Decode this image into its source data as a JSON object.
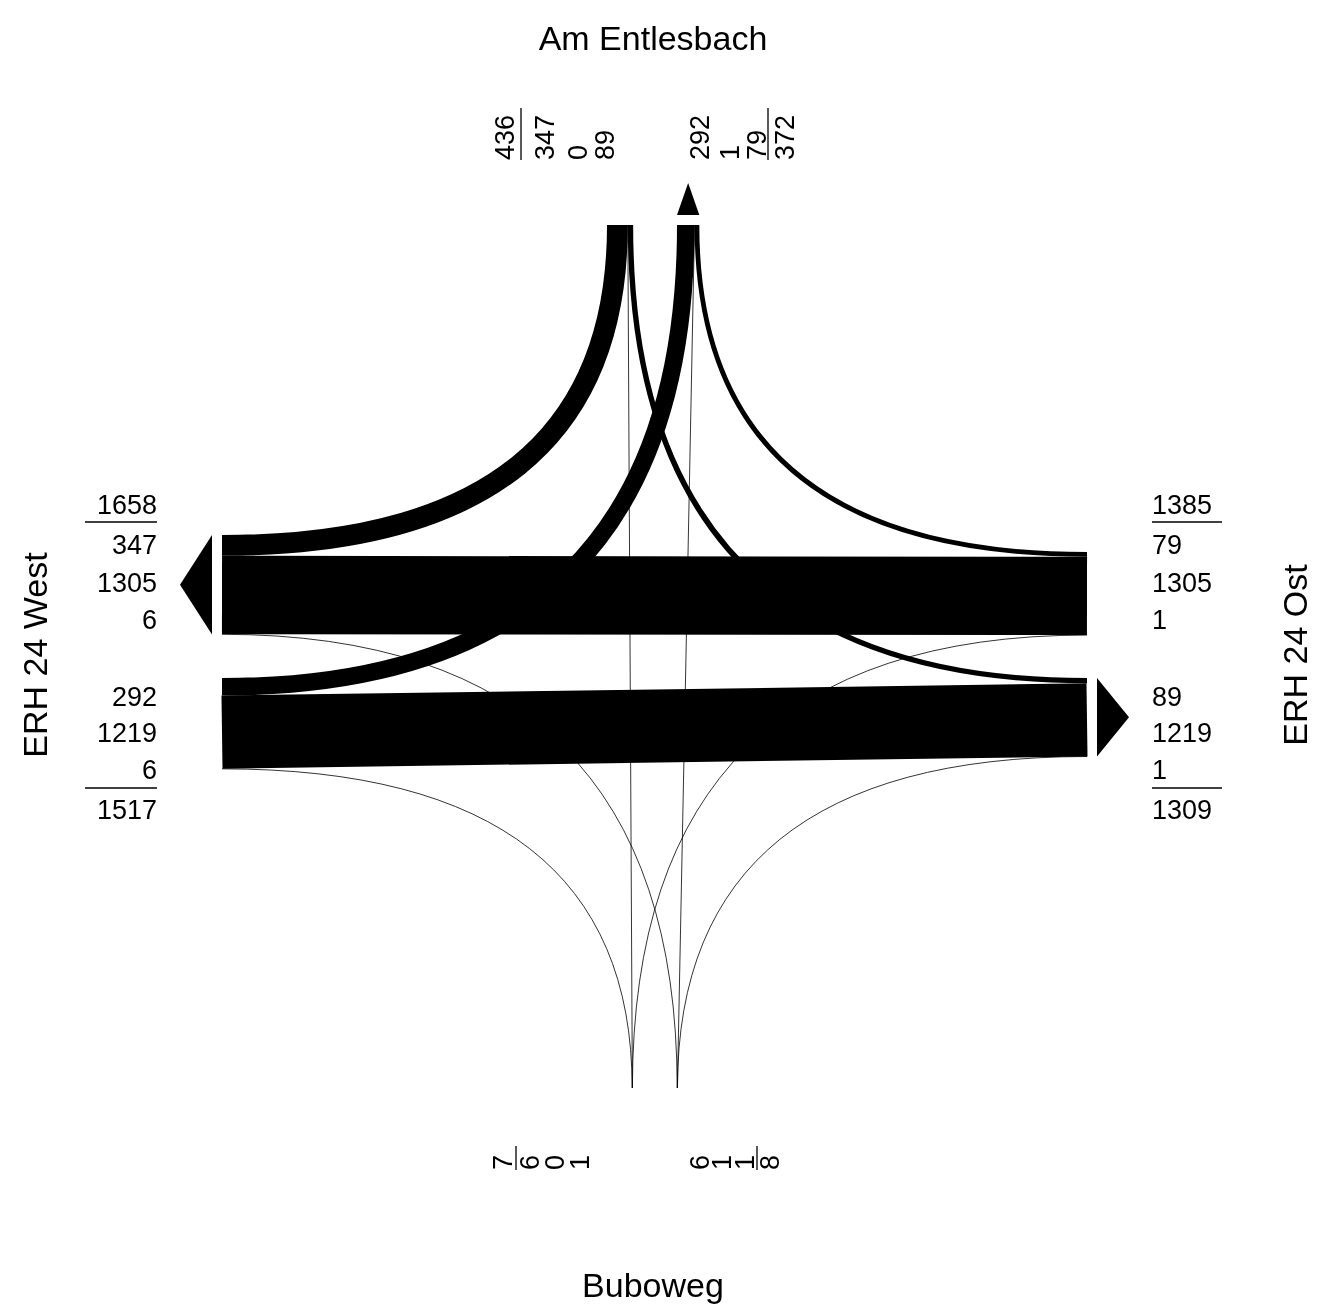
{
  "chart_data": {
    "type": "other",
    "categories": [
      "Am Entlesbach",
      "ERH 24 West",
      "ERH 24 Ost",
      "Buboweg"
    ],
    "series": [
      {
        "color": "#000000",
        "values": [
          null,
          347,
          89,
          0
        ]
      },
      {
        "color": "#000000",
        "values": [
          null,
          292,
          79,
          1
        ]
      },
      {
        "color": "#000000",
        "values": [
          292,
          null,
          1219,
          6
        ]
      },
      {
        "color": "#000000",
        "values": [
          347,
          null,
          1305,
          6
        ]
      },
      {
        "color": "#000000",
        "values": [
          79,
          1305,
          null,
          1
        ]
      },
      {
        "color": "#000000",
        "values": [
          89,
          1219,
          null,
          1
        ]
      },
      {
        "color": "#000000",
        "values": [
          1,
          6,
          1,
          null
        ]
      },
      {
        "color": "#000000",
        "values": [
          0,
          6,
          1,
          null
        ]
      }
    ],
    "totals": [
      [
        "436",
        "372"
      ],
      [
        "1517",
        "1658"
      ],
      [
        "1385",
        "1309"
      ],
      [
        "8",
        "7"
      ]
    ],
    "data_labels": true
  }
}
